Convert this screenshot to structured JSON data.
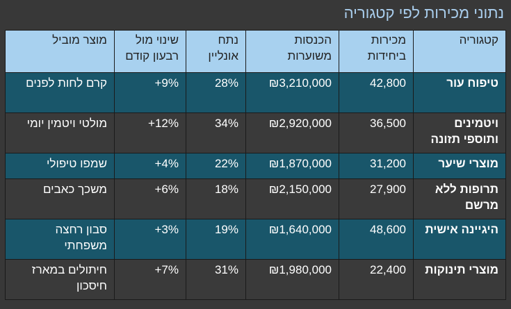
{
  "title": "נתוני מכירות לפי קטגוריה",
  "headers": [
    "קטגוריה",
    "מכירות ביחידות",
    "הכנסות משוערות",
    "נתח אונליין",
    "שינוי מול רבעון קודם",
    "מוצר מוביל"
  ],
  "rows": [
    {
      "category": "טיפוח עור",
      "units": "42,800",
      "revenue": "₪3,210,000",
      "online": "28%",
      "change": "+9%",
      "top": "קרם לחות לפנים"
    },
    {
      "category": "ויטמינים ותוספי תזונה",
      "units": "36,500",
      "revenue": "₪2,920,000",
      "online": "34%",
      "change": "+12%",
      "top": "מולטי ויטמין יומי"
    },
    {
      "category": "מוצרי שיער",
      "units": "31,200",
      "revenue": "₪1,870,000",
      "online": "22%",
      "change": "+4%",
      "top": "שמפו טיפולי"
    },
    {
      "category": "תרופות ללא מרשם",
      "units": "27,900",
      "revenue": "₪2,150,000",
      "online": "18%",
      "change": "+6%",
      "top": "משכך כאבים"
    },
    {
      "category": "היגיינה אישית",
      "units": "48,600",
      "revenue": "₪1,640,000",
      "online": "19%",
      "change": "+3%",
      "top": "סבון רחצה משפחתי"
    },
    {
      "category": "מוצרי תינוקות",
      "units": "22,400",
      "revenue": "₪1,980,000",
      "online": "31%",
      "change": "+7%",
      "top": "חיתולים במארז חיסכון"
    }
  ],
  "colors": {
    "header": "#a8d1ef",
    "row_teal": "#19566a",
    "row_dark": "#3a3a3a",
    "title": "#a9cdec",
    "background": "#383838"
  }
}
